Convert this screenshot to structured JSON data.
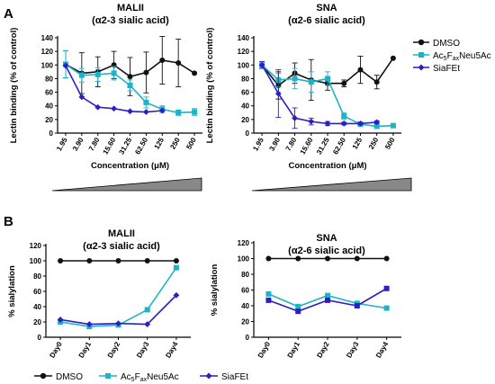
{
  "panels": {
    "a": {
      "letter": "A"
    },
    "b": {
      "letter": "B"
    }
  },
  "legend_a": [
    {
      "text": "DMSO"
    },
    {
      "text": "Ac",
      "sub": "5",
      "mid": "F",
      "sub2": "ax",
      "tail": "Neu5Ac"
    },
    {
      "text": "SiaFEt"
    }
  ],
  "legend_b": [
    {
      "text": "DMSO"
    },
    {
      "text": "Ac",
      "sub": "5",
      "mid": "F",
      "sub2": "ax",
      "tail": "Neu5Ac"
    },
    {
      "text": "SiaFEt"
    }
  ],
  "colors": {
    "dmso": "#111111",
    "ac5f": "#1fb3c8",
    "siafet": "#2a1fc4",
    "wedge": "#888888"
  },
  "chart_data": [
    {
      "type": "line",
      "title": "MALII",
      "subtitle": "(α2-3 sialic acid)",
      "xlabel": "Concentration (μM)",
      "ylabel": "Lectin binding (% of control)",
      "categories": [
        "1.95",
        "3.90",
        "7.80",
        "15.60",
        "31.25",
        "62.50",
        "125",
        "250",
        "500"
      ],
      "ylim": [
        0,
        140
      ],
      "yticks": [
        "0",
        "20",
        "40",
        "60",
        "80",
        "100",
        "120",
        "140"
      ],
      "series": [
        {
          "name": "DMSO",
          "color": "#111111",
          "marker": "circle",
          "values": [
            101,
            88,
            90,
            100,
            83,
            89,
            107,
            103,
            88
          ],
          "errors": [
            20,
            30,
            22,
            20,
            28,
            30,
            35,
            35,
            0
          ]
        },
        {
          "name": "Ac5FaxNeu5Ac",
          "color": "#1fb3c8",
          "marker": "square",
          "values": [
            101,
            85,
            86,
            88,
            70,
            45,
            35,
            30,
            31
          ],
          "errors": [
            20,
            10,
            10,
            10,
            8,
            8,
            5,
            4,
            5
          ]
        },
        {
          "name": "SiaFEt",
          "color": "#2a1fc4",
          "marker": "diamond",
          "values": [
            99,
            53,
            38,
            36,
            32,
            31,
            33,
            null,
            null
          ],
          "errors": [
            0,
            0,
            0,
            0,
            0,
            0,
            0,
            0,
            0
          ]
        }
      ]
    },
    {
      "type": "line",
      "title": "SNA",
      "subtitle": "(α2-6 sialic acid)",
      "xlabel": "Concentration (μM)",
      "ylabel": "Lectin binding (% of control)",
      "categories": [
        "1.95",
        "3.90",
        "7.80",
        "15.60",
        "31.25",
        "62.50",
        "125",
        "250",
        "500"
      ],
      "ylim": [
        0,
        140
      ],
      "yticks": [
        "0",
        "20",
        "40",
        "60",
        "80",
        "100",
        "120",
        "140"
      ],
      "series": [
        {
          "name": "DMSO",
          "color": "#111111",
          "marker": "circle",
          "values": [
            100,
            70,
            88,
            78,
            73,
            73,
            93,
            75,
            110
          ],
          "errors": [
            5,
            20,
            15,
            30,
            10,
            5,
            20,
            10,
            0
          ]
        },
        {
          "name": "Ac5FaxNeu5Ac",
          "color": "#1fb3c8",
          "marker": "square",
          "values": [
            100,
            78,
            80,
            75,
            80,
            25,
            13,
            10,
            11
          ],
          "errors": [
            5,
            10,
            15,
            15,
            10,
            5,
            3,
            3,
            2
          ]
        },
        {
          "name": "SiaFEt",
          "color": "#2a1fc4",
          "marker": "diamond",
          "values": [
            100,
            58,
            22,
            17,
            14,
            14,
            14,
            16,
            null
          ],
          "errors": [
            5,
            35,
            15,
            5,
            3,
            2,
            2,
            2,
            0
          ]
        }
      ]
    },
    {
      "type": "line",
      "title": "MALII",
      "subtitle": "(α2-3 sialic acid)",
      "xlabel": "",
      "ylabel": "% sialylation",
      "categories": [
        "Day0",
        "Day1",
        "Day2",
        "Day3",
        "Day4"
      ],
      "ylim": [
        0,
        120
      ],
      "yticks": [
        "0",
        "20",
        "40",
        "60",
        "80",
        "100",
        "120"
      ],
      "series": [
        {
          "name": "DMSO",
          "color": "#111111",
          "marker": "circle",
          "values": [
            100,
            100,
            100,
            100,
            100
          ]
        },
        {
          "name": "Ac5FaxNeu5Ac",
          "color": "#1fb3c8",
          "marker": "square",
          "values": [
            20,
            14,
            16,
            36,
            91
          ]
        },
        {
          "name": "SiaFEt",
          "color": "#2a1fc4",
          "marker": "diamond",
          "values": [
            23,
            17,
            18,
            17,
            55
          ]
        }
      ]
    },
    {
      "type": "line",
      "title": "SNA",
      "subtitle": "(α2-6 sialic acid)",
      "xlabel": "",
      "ylabel": "% sialylation",
      "categories": [
        "Day0",
        "Day1",
        "Day2",
        "Day3",
        "Day4"
      ],
      "ylim": [
        0,
        120
      ],
      "yticks": [
        "0",
        "20",
        "40",
        "60",
        "80",
        "100",
        "120"
      ],
      "series": [
        {
          "name": "DMSO",
          "color": "#111111",
          "marker": "circle",
          "values": [
            100,
            100,
            100,
            100,
            100
          ]
        },
        {
          "name": "Ac5FaxNeu5Ac",
          "color": "#1fb3c8",
          "marker": "square",
          "values": [
            55,
            39,
            53,
            43,
            37
          ]
        },
        {
          "name": "SiaFEt",
          "color": "#2a1fc4",
          "marker": "square",
          "values": [
            47,
            33,
            47,
            40,
            62
          ]
        }
      ]
    }
  ]
}
